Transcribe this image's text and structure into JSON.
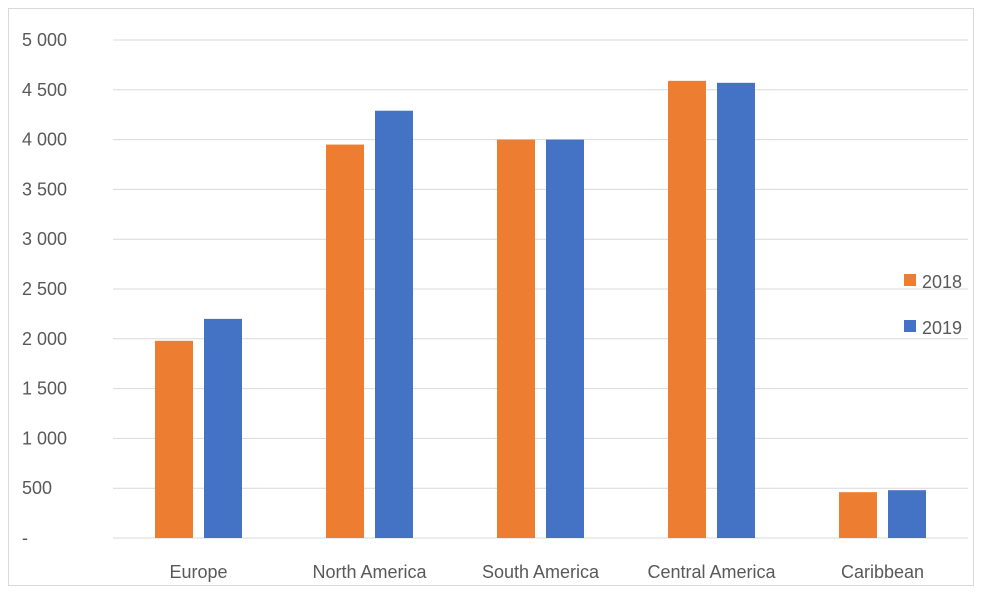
{
  "chart_data": {
    "type": "bar",
    "title": "",
    "xlabel": "",
    "ylabel": "",
    "categories": [
      "Europe",
      "North America",
      "South America",
      "Central America",
      "Caribbean"
    ],
    "series": [
      {
        "name": "2018",
        "color": "#ED7D31",
        "values": [
          1980,
          3950,
          4000,
          4590,
          460
        ]
      },
      {
        "name": "2019",
        "color": "#4472C4",
        "values": [
          2200,
          4290,
          4000,
          4570,
          480
        ]
      }
    ],
    "ylim": [
      0,
      5000
    ],
    "yticks": [
      0,
      500,
      1000,
      1500,
      2000,
      2500,
      3000,
      3500,
      4000,
      4500,
      5000
    ],
    "ytick_labels": [
      "-",
      "500",
      "1 000",
      "1 500",
      "2 000",
      "2 500",
      "3 000",
      "3 500",
      "4 000",
      "4 500",
      "5 000"
    ],
    "grid": true,
    "gridline_color": "#d9d9d9",
    "legend": {
      "placement": "right",
      "entries": [
        "2018",
        "2019"
      ]
    }
  }
}
